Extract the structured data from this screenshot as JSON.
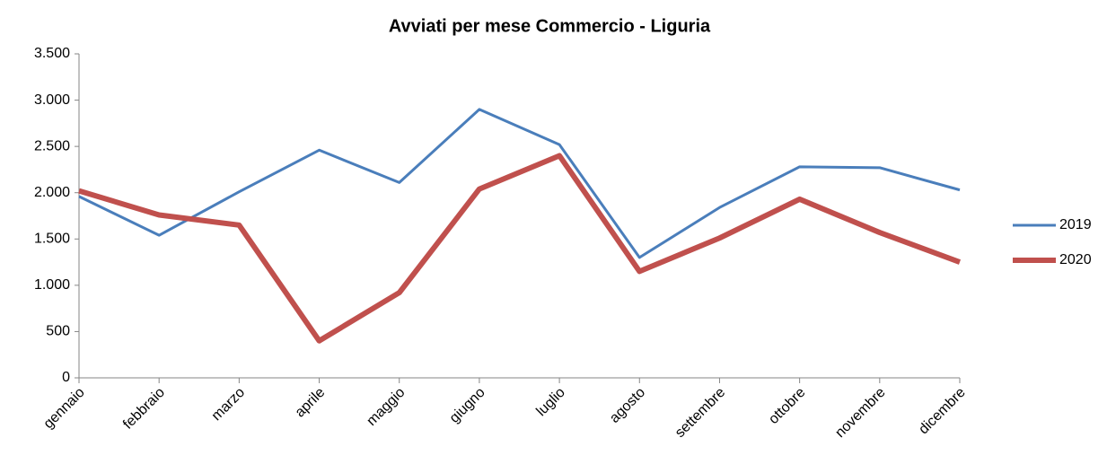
{
  "chart_data": {
    "type": "line",
    "title": "Avviati per mese Commercio - Liguria",
    "categories": [
      "gennaio",
      "febbraio",
      "marzo",
      "aprile",
      "maggio",
      "giugno",
      "luglio",
      "agosto",
      "settembre",
      "ottobre",
      "novembre",
      "dicembre"
    ],
    "series": [
      {
        "name": "2019",
        "color": "#4a7ebb",
        "values": [
          1960,
          1540,
          2010,
          2460,
          2110,
          2900,
          2520,
          1300,
          1840,
          2280,
          2270,
          2030
        ]
      },
      {
        "name": "2020",
        "color": "#c0504d",
        "values": [
          2020,
          1760,
          1650,
          400,
          920,
          2040,
          2400,
          1150,
          1510,
          1930,
          1570,
          1250
        ]
      }
    ],
    "ylim": [
      0,
      3500
    ],
    "yticks": [
      0,
      500,
      {
        "value": 1000,
        "label": "1.000"
      },
      {
        "value": 1500,
        "label": "1.500"
      },
      {
        "value": 2000,
        "label": "2.000"
      },
      {
        "value": 2500,
        "label": "2.500"
      },
      {
        "value": 3000,
        "label": "3.000"
      },
      {
        "value": 3500,
        "label": "3.500"
      }
    ],
    "grid": false,
    "legend": "right"
  }
}
